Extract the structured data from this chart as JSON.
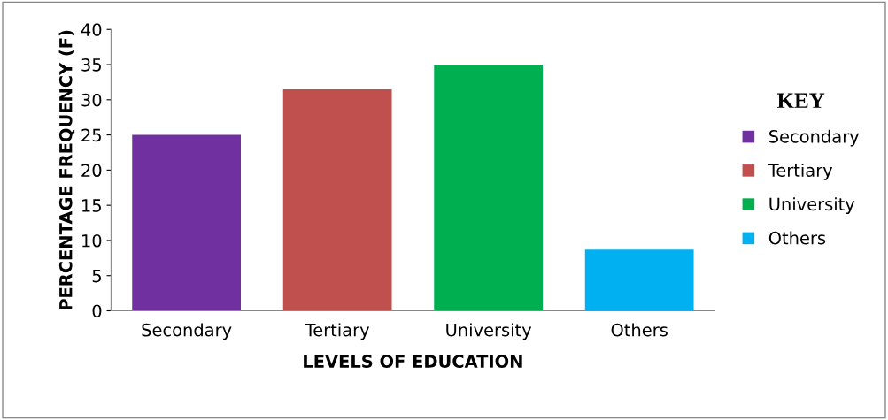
{
  "chart_data": {
    "type": "bar",
    "xlabel": "LEVELS OF EDUCATION",
    "ylabel": "PERCENTAGE FREQUENCY (F)",
    "categories": [
      "Secondary",
      "Tertiary",
      "University",
      "Others"
    ],
    "series": [
      {
        "name": "Secondary",
        "color": "#7030a0",
        "values": [
          25,
          null,
          null,
          null
        ]
      },
      {
        "name": "Tertiary",
        "color": "#c0504d",
        "values": [
          null,
          31.5,
          null,
          null
        ]
      },
      {
        "name": "University",
        "color": "#00b050",
        "values": [
          null,
          null,
          35,
          null
        ]
      },
      {
        "name": "Others",
        "color": "#00b0f0",
        "values": [
          null,
          null,
          null,
          8.7
        ]
      }
    ],
    "ylim": [
      0,
      40
    ],
    "yticks": [
      0,
      5,
      10,
      15,
      20,
      25,
      30,
      35,
      40
    ],
    "grid": false,
    "legend": "right",
    "legend_title": "KEY"
  }
}
